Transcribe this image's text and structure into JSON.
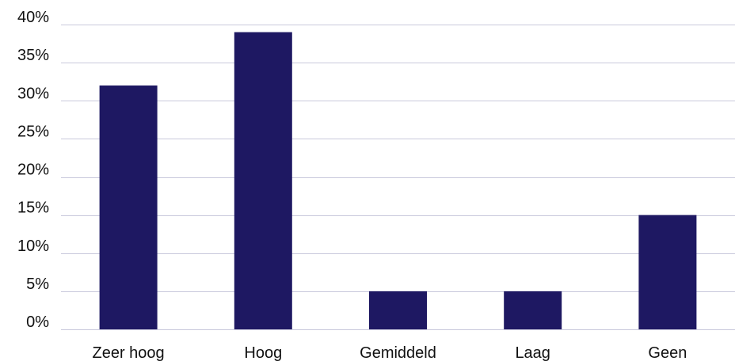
{
  "chart_data": {
    "type": "bar",
    "title": "",
    "xlabel": "",
    "ylabel": "",
    "categories": [
      "Zeer hoog",
      "Hoog",
      "Gemiddeld",
      "Laag",
      "Geen"
    ],
    "values": [
      32,
      39,
      5,
      5,
      15
    ],
    "value_unit": "%",
    "ylim": [
      0,
      40
    ],
    "yticks": [
      0,
      5,
      10,
      15,
      20,
      25,
      30,
      35,
      40
    ],
    "ytick_labels": [
      "0%",
      "5%",
      "10%",
      "15%",
      "20%",
      "25%",
      "30%",
      "35%",
      "40%"
    ],
    "grid": true,
    "legend": "none",
    "bar_color": "#1e1862",
    "grid_color": "#c9c9dc",
    "text_color": "#111111"
  }
}
